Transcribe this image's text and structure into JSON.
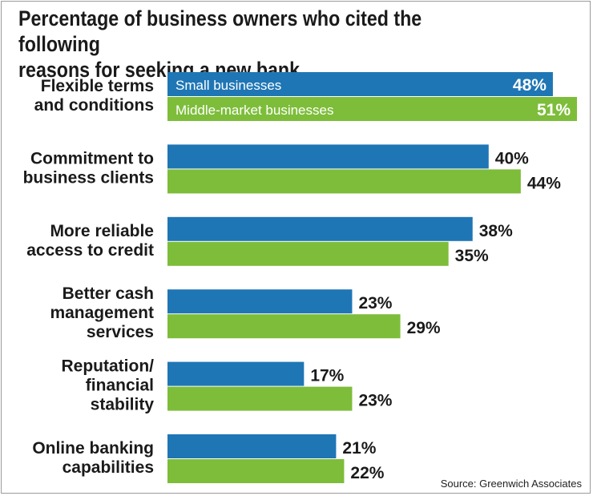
{
  "chart_data": {
    "type": "bar",
    "orientation": "horizontal",
    "title_lines": [
      "Percentage of business owners who cited the following",
      "reasons for seeking a new bank."
    ],
    "categories": [
      [
        "Flexible terms",
        "and conditions"
      ],
      [
        "Commitment to",
        "business clients"
      ],
      [
        "More reliable",
        "access to credit"
      ],
      [
        "Better cash",
        "management",
        "services"
      ],
      [
        "Reputation/",
        "financial",
        "stability"
      ],
      [
        "Online banking",
        "capabilities"
      ]
    ],
    "series": [
      {
        "name": "Small businesses",
        "color": "#1f76b5",
        "values": [
          48,
          40,
          38,
          23,
          17,
          21
        ]
      },
      {
        "name": "Middle-market businesses",
        "color": "#7dbd3a",
        "values": [
          51,
          44,
          35,
          29,
          23,
          22
        ]
      }
    ],
    "value_suffix": "%",
    "legend": "inside first bar group",
    "xlim": [
      0,
      51
    ],
    "source": "Source: Greenwich Associates"
  }
}
